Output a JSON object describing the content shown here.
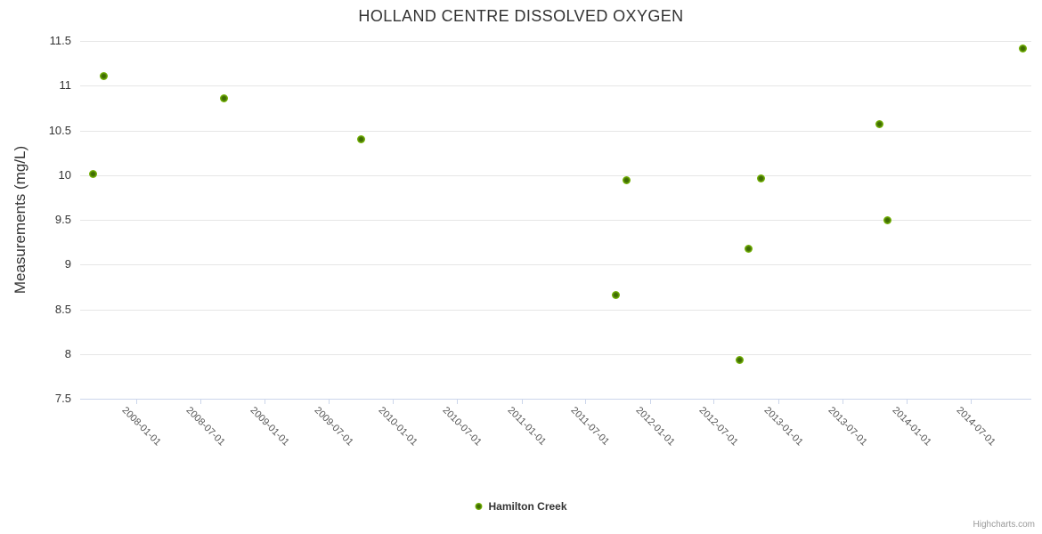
{
  "title": "HOLLAND CENTRE DISSOLVED OXYGEN",
  "credits_label": "Highcharts.com",
  "legend": {
    "items": [
      {
        "label": "Hamilton Creek"
      }
    ]
  },
  "colors": {
    "series_green_outer": "#8ac612",
    "series_green_mid": "#74b206",
    "series_green_inner": "#3f6c03",
    "grid": "#e6e6e6",
    "axis": "#ccd6eb",
    "title_text": "#333333",
    "axis_label_text": "#555555",
    "credits_text": "#999999"
  },
  "chart_data": {
    "type": "scatter",
    "title": "HOLLAND CENTRE DISSOLVED OXYGEN",
    "xlabel": "",
    "ylabel": "Measurements (mg/L)",
    "ylim": [
      7.5,
      11.5
    ],
    "yticks": [
      7.5,
      8,
      8.5,
      9,
      9.5,
      10,
      10.5,
      11,
      11.5
    ],
    "xlim": [
      "2007-07-26",
      "2014-12-21"
    ],
    "xticks": [
      "2008-01-01",
      "2008-07-01",
      "2009-01-01",
      "2009-07-01",
      "2010-01-01",
      "2010-07-01",
      "2011-01-01",
      "2011-07-01",
      "2012-01-01",
      "2012-07-01",
      "2013-01-01",
      "2013-07-01",
      "2014-01-01",
      "2014-07-01"
    ],
    "grid": true,
    "legend_position": "bottom-center",
    "series": [
      {
        "name": "Hamilton Creek",
        "color": "#74b206",
        "points": [
          {
            "date": "2007-08-31",
            "value": 10.01
          },
          {
            "date": "2007-09-30",
            "value": 11.11
          },
          {
            "date": "2008-09-06",
            "value": 10.86
          },
          {
            "date": "2009-10-02",
            "value": 10.4
          },
          {
            "date": "2011-09-26",
            "value": 8.66
          },
          {
            "date": "2011-10-28",
            "value": 9.94
          },
          {
            "date": "2012-09-13",
            "value": 7.93
          },
          {
            "date": "2012-10-09",
            "value": 9.18
          },
          {
            "date": "2012-11-13",
            "value": 9.96
          },
          {
            "date": "2013-10-15",
            "value": 10.57
          },
          {
            "date": "2013-11-07",
            "value": 9.5
          },
          {
            "date": "2014-11-26",
            "value": 11.42
          }
        ]
      }
    ]
  }
}
